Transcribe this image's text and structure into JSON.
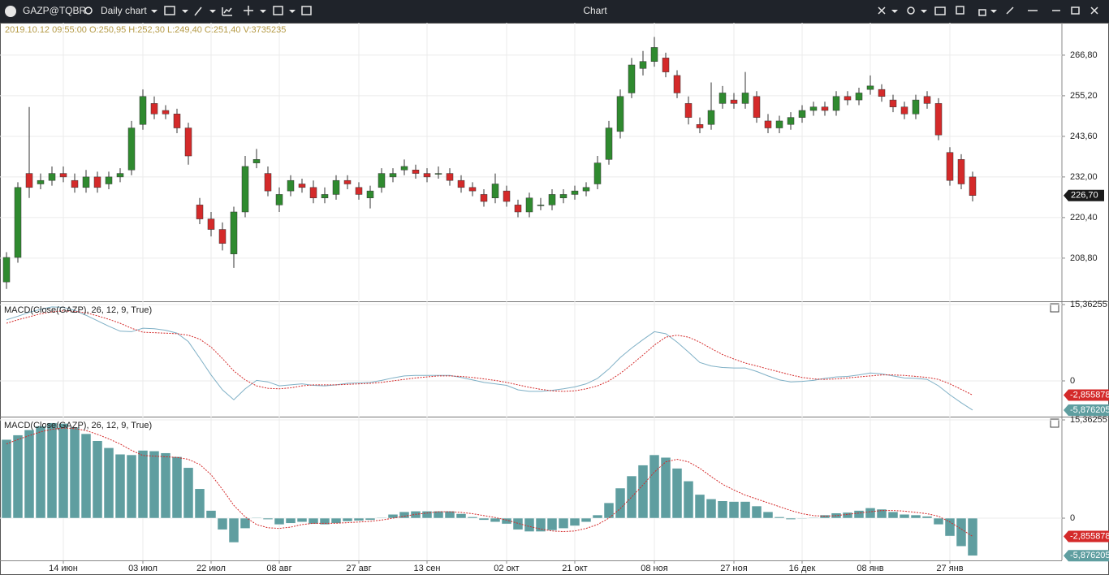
{
  "toolbar": {
    "symbol": "GAZP@TQBR",
    "timeframe": "Daily chart",
    "window_title": "Chart"
  },
  "chart_data": [
    {
      "type": "candlestick",
      "info": "2019.10.12 09:55:00 O:250,95 H:252,30 L:249,40 C:251,40 V:3735235",
      "categories": [
        null,
        null,
        null,
        null,
        null,
        "14 июн",
        null,
        null,
        null,
        null,
        null,
        null,
        "03 июл",
        null,
        null,
        null,
        null,
        null,
        "22 июл",
        null,
        null,
        null,
        null,
        null,
        "08 авг",
        null,
        null,
        null,
        null,
        null,
        null,
        "27 авг",
        null,
        null,
        null,
        null,
        null,
        "13 сен",
        null,
        null,
        null,
        null,
        null,
        null,
        "02 окт",
        null,
        null,
        null,
        null,
        null,
        "21 окт",
        null,
        null,
        null,
        null,
        null,
        null,
        "08 ноя",
        null,
        null,
        null,
        null,
        null,
        null,
        "27 ноя",
        null,
        null,
        null,
        null,
        null,
        "16 дек",
        null,
        null,
        null,
        null,
        null,
        "08 янв",
        null,
        null,
        null,
        null,
        null,
        null,
        "27 янв",
        null,
        null
      ],
      "open": [
        202,
        209,
        233,
        230,
        231,
        233,
        231,
        229,
        232,
        230,
        232,
        234,
        247,
        253,
        251,
        250,
        246,
        224,
        220,
        217,
        210,
        222,
        236,
        233,
        224,
        228,
        230,
        229,
        226,
        227,
        231,
        229,
        226,
        229,
        232,
        234,
        234,
        233,
        233,
        233,
        231,
        229,
        227,
        226,
        228,
        224,
        222,
        224,
        224,
        226,
        227,
        228,
        230,
        237,
        245,
        256,
        263,
        265,
        266,
        261,
        253,
        247,
        247,
        253,
        254,
        253,
        255,
        248,
        246,
        247,
        249,
        251,
        252,
        251,
        255,
        254,
        257,
        257,
        254,
        252,
        250,
        255,
        253,
        239,
        237,
        232
      ],
      "high": [
        210.5,
        230.5,
        252,
        233,
        235,
        235,
        233,
        234,
        233.5,
        233.5,
        234.5,
        248,
        257,
        255,
        252.5,
        251.5,
        247.5,
        226,
        222,
        219,
        223.5,
        238,
        240,
        235,
        229,
        232.5,
        231.5,
        231,
        229,
        232.5,
        232.5,
        230.5,
        229.5,
        234.5,
        234.5,
        237,
        235.5,
        234.5,
        235,
        234.5,
        232.5,
        230.5,
        228.5,
        233,
        229.5,
        225.5,
        227.5,
        226,
        228.5,
        228.5,
        229.5,
        230.5,
        238,
        248,
        257,
        266,
        268,
        272,
        267.5,
        262.5,
        255,
        249,
        259,
        258,
        256,
        262,
        256.5,
        250,
        249.5,
        250.5,
        252.5,
        253.5,
        253.5,
        256.5,
        256.5,
        257.5,
        261,
        258.5,
        255.5,
        253.5,
        255.5,
        256.5,
        254.5,
        240.5,
        238.5,
        233.5
      ],
      "low": [
        200,
        207.5,
        226,
        228.5,
        229.5,
        230.5,
        227.5,
        227.5,
        227.5,
        228.5,
        230.5,
        232.5,
        245.5,
        248.5,
        248.5,
        244.5,
        235.5,
        218.5,
        215,
        211,
        206,
        220.5,
        234.5,
        226.5,
        222,
        226.5,
        227.5,
        224.5,
        224.5,
        225.5,
        228.5,
        225.5,
        223,
        227.5,
        230.5,
        232.5,
        231.5,
        230.5,
        231.5,
        229.5,
        227.5,
        226.5,
        223.5,
        224.5,
        223.5,
        220.5,
        220.5,
        222.5,
        222.5,
        224.5,
        225.5,
        226.5,
        228.5,
        235.5,
        243,
        254.5,
        261,
        263.5,
        260.5,
        254.5,
        247,
        244.5,
        245.5,
        251.5,
        251.5,
        251.5,
        247.5,
        244.5,
        244.5,
        245.5,
        247.5,
        249.5,
        249.5,
        249.5,
        252.5,
        252.5,
        255.5,
        253.5,
        250.5,
        248.5,
        248.5,
        251.5,
        242.5,
        229.5,
        228.5,
        225
      ],
      "close": [
        209,
        229,
        229,
        231,
        233,
        232,
        229,
        232,
        229,
        232,
        233,
        246,
        255,
        250,
        250,
        246,
        238,
        220,
        217,
        213,
        222,
        235,
        237,
        228,
        227,
        231,
        229,
        226,
        227,
        231,
        230,
        227,
        228,
        233,
        233,
        235,
        233,
        232,
        233,
        231,
        229,
        228,
        225,
        230,
        225,
        222,
        226,
        224,
        227,
        227,
        228,
        229,
        236,
        246,
        255,
        264,
        265,
        269,
        262,
        256,
        249,
        246,
        251,
        256,
        253,
        256,
        249,
        246,
        248,
        249,
        251,
        252,
        251,
        255,
        254,
        256,
        258,
        255,
        252,
        250,
        254,
        253,
        244,
        231,
        230,
        226.7
      ],
      "ylim": [
        196.7,
        275.6
      ],
      "yticks": [
        {
          "value": 208.8,
          "label": "208,80"
        },
        {
          "value": 220.4,
          "label": "220,40"
        },
        {
          "value": 232,
          "label": "232,00"
        },
        {
          "value": 243.6,
          "label": "243,60"
        },
        {
          "value": 255.2,
          "label": "255,20"
        },
        {
          "value": 266.8,
          "label": "266,80"
        }
      ],
      "grid": true,
      "up_color": "#2f8a2f",
      "down_color": "#d42a2a",
      "last_price": {
        "value": 226.7,
        "label": "226,70"
      }
    },
    {
      "type": "line",
      "title": "MACD(Close(GAZP), 26, 12, 9, True)",
      "ylim": [
        -7.03,
        15.69
      ],
      "yticks": [
        {
          "value": 15.36255,
          "label": "15,36255"
        },
        0
      ],
      "series": [
        {
          "color": "#7fb0c6",
          "values": [
            12.3,
            13.0,
            13.8,
            14.4,
            14.9,
            14.8,
            14.2,
            13.2,
            12.1,
            11.0,
            10.0,
            9.9,
            10.6,
            10.5,
            10.2,
            9.6,
            7.9,
            4.6,
            1.2,
            -1.8,
            -3.8,
            -1.6,
            0.1,
            -0.2,
            -1.0,
            -0.8,
            -0.6,
            -0.9,
            -1.0,
            -0.8,
            -0.5,
            -0.4,
            -0.3,
            0.1,
            0.6,
            1.0,
            1.1,
            1.1,
            1.1,
            1.1,
            0.7,
            0.2,
            -0.3,
            -0.6,
            -0.9,
            -1.8,
            -2.1,
            -2.1,
            -1.9,
            -1.6,
            -1.2,
            -0.6,
            0.5,
            2.4,
            4.7,
            6.6,
            8.3,
            9.9,
            9.5,
            7.8,
            5.8,
            3.7,
            3.0,
            2.7,
            2.6,
            2.6,
            1.9,
            1.0,
            0.2,
            -0.2,
            -0.1,
            0.1,
            0.5,
            0.8,
            0.9,
            1.2,
            1.6,
            1.4,
            1.0,
            0.6,
            0.5,
            0.3,
            -1.0,
            -2.8,
            -4.4,
            -5.876205
          ]
        },
        {
          "color": "#d42a2a",
          "dashed": true,
          "values": [
            11.6,
            12.3,
            12.9,
            13.5,
            13.9,
            14.1,
            14.0,
            13.7,
            13.1,
            12.4,
            11.6,
            10.6,
            9.8,
            9.7,
            9.6,
            9.5,
            9.2,
            8.4,
            6.8,
            4.5,
            2.0,
            0.2,
            -1.0,
            -1.5,
            -1.6,
            -1.4,
            -1.0,
            -0.8,
            -0.8,
            -0.8,
            -0.7,
            -0.6,
            -0.5,
            -0.3,
            0.0,
            0.3,
            0.6,
            0.8,
            1.0,
            1.0,
            0.9,
            0.7,
            0.4,
            0.1,
            -0.3,
            -0.8,
            -1.3,
            -1.7,
            -2.0,
            -2.1,
            -2.0,
            -1.6,
            -1.0,
            0.0,
            1.5,
            3.3,
            5.2,
            7.2,
            8.8,
            9.2,
            8.8,
            7.8,
            6.5,
            5.3,
            4.4,
            3.6,
            3.0,
            2.4,
            1.8,
            1.2,
            0.7,
            0.4,
            0.3,
            0.4,
            0.6,
            0.8,
            1.0,
            1.2,
            1.2,
            1.1,
            0.9,
            0.7,
            0.3,
            -0.6,
            -1.7,
            -2.855878
          ]
        }
      ],
      "annotations": [
        {
          "value": -2.855878,
          "label": "-2,855878",
          "color": "#d42a2a"
        },
        {
          "value": -5.876205,
          "label": "-5,876205",
          "color": "#5f9ea0"
        }
      ]
    },
    {
      "type": "combo",
      "title": "MACD(Close(GAZP), 26, 12, 9, True)",
      "ylim": [
        -6.6,
        15.62
      ],
      "yticks": [
        {
          "value": 15.36255,
          "label": "15,36255"
        },
        0
      ],
      "series": [
        {
          "type": "bar",
          "color": "#5f9ea0",
          "values": [
            12.3,
            13.0,
            13.8,
            14.4,
            14.9,
            14.8,
            14.2,
            13.2,
            12.1,
            11.0,
            10.0,
            9.9,
            10.6,
            10.5,
            10.2,
            9.6,
            7.9,
            4.6,
            1.2,
            -1.8,
            -3.8,
            -1.6,
            0.1,
            -0.2,
            -1.0,
            -0.8,
            -0.6,
            -0.9,
            -1.0,
            -0.8,
            -0.5,
            -0.4,
            -0.3,
            0.1,
            0.6,
            1.0,
            1.1,
            1.1,
            1.1,
            1.1,
            0.7,
            0.2,
            -0.3,
            -0.6,
            -0.9,
            -1.8,
            -2.1,
            -2.1,
            -1.9,
            -1.6,
            -1.2,
            -0.6,
            0.5,
            2.4,
            4.7,
            6.6,
            8.3,
            9.9,
            9.5,
            7.8,
            5.8,
            3.7,
            3.0,
            2.7,
            2.6,
            2.6,
            1.9,
            1.0,
            0.2,
            -0.2,
            -0.1,
            0.1,
            0.5,
            0.8,
            0.9,
            1.2,
            1.6,
            1.4,
            1.0,
            0.6,
            0.5,
            0.3,
            -1.0,
            -2.8,
            -4.4,
            -5.876205
          ]
        },
        {
          "type": "line",
          "color": "#d42a2a",
          "dashed": true,
          "values": [
            11.6,
            12.3,
            12.9,
            13.5,
            13.9,
            14.1,
            14.0,
            13.7,
            13.1,
            12.4,
            11.6,
            10.6,
            9.8,
            9.7,
            9.6,
            9.5,
            9.2,
            8.4,
            6.8,
            4.5,
            2.0,
            0.2,
            -1.0,
            -1.5,
            -1.6,
            -1.4,
            -1.0,
            -0.8,
            -0.8,
            -0.8,
            -0.7,
            -0.6,
            -0.5,
            -0.3,
            0.0,
            0.3,
            0.6,
            0.8,
            1.0,
            1.0,
            0.9,
            0.7,
            0.4,
            0.1,
            -0.3,
            -0.8,
            -1.3,
            -1.7,
            -2.0,
            -2.1,
            -2.0,
            -1.6,
            -1.0,
            0.0,
            1.5,
            3.3,
            5.2,
            7.2,
            8.8,
            9.2,
            8.8,
            7.8,
            6.5,
            5.3,
            4.4,
            3.6,
            3.0,
            2.4,
            1.8,
            1.2,
            0.7,
            0.4,
            0.3,
            0.4,
            0.6,
            0.8,
            1.0,
            1.2,
            1.2,
            1.1,
            0.9,
            0.7,
            0.3,
            -0.6,
            -1.7,
            -2.855878
          ]
        }
      ],
      "annotations": [
        {
          "value": -2.855878,
          "label": "-2,855878",
          "color": "#d42a2a"
        },
        {
          "value": -5.876205,
          "label": "-5,876205",
          "color": "#5f9ea0"
        }
      ]
    }
  ]
}
